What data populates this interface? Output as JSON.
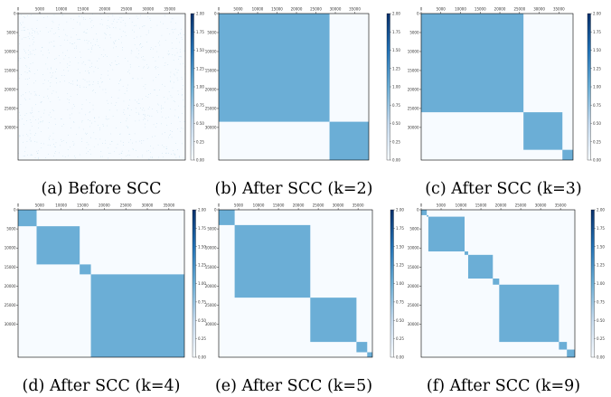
{
  "chart_data": [
    {
      "type": "heatmap",
      "caption": "(a) Before SCC",
      "x_ticks": [
        "0",
        "5000",
        "10000",
        "15000",
        "20000",
        "25000",
        "30000",
        "35000"
      ],
      "y_ticks": [
        "0",
        "5000",
        "10000",
        "15000",
        "20000",
        "25000",
        "30000"
      ],
      "colorbar_ticks": [
        "0.00",
        "0.25",
        "0.50",
        "0.75",
        "1.00",
        "1.25",
        "1.50",
        "1.75",
        "2.00"
      ],
      "colorbar_range": [
        0,
        2
      ],
      "matrix_size": 38600,
      "blocks": [],
      "scattered": true
    },
    {
      "type": "heatmap",
      "caption": "(b) After SCC (k=2)",
      "x_ticks": [
        "0",
        "5000",
        "10000",
        "15000",
        "20000",
        "25000",
        "30000",
        "35000"
      ],
      "y_ticks": [
        "0",
        "5000",
        "10000",
        "15000",
        "20000",
        "25000",
        "30000"
      ],
      "colorbar_ticks": [
        "0.00",
        "0.25",
        "0.50",
        "0.75",
        "1.00",
        "1.25",
        "1.50",
        "1.75",
        "2.00"
      ],
      "colorbar_range": [
        0,
        2
      ],
      "matrix_size": 38600,
      "blocks": [
        [
          0,
          28500
        ],
        [
          28500,
          38600
        ]
      ]
    },
    {
      "type": "heatmap",
      "caption": "(c) After SCC (k=3)",
      "x_ticks": [
        "0",
        "5000",
        "10000",
        "15000",
        "20000",
        "25000",
        "30000",
        "35000"
      ],
      "y_ticks": [
        "0",
        "5000",
        "10000",
        "15000",
        "20000",
        "25000",
        "30000"
      ],
      "colorbar_ticks": [
        "0.00",
        "0.25",
        "0.50",
        "0.75",
        "1.00",
        "1.25",
        "1.50",
        "1.75",
        "2.00"
      ],
      "colorbar_range": [
        0,
        2
      ],
      "matrix_size": 38600,
      "blocks": [
        [
          0,
          26000
        ],
        [
          26000,
          35900
        ],
        [
          35900,
          38600
        ]
      ]
    },
    {
      "type": "heatmap",
      "caption": "(d) After SCC (k=4)",
      "x_ticks": [
        "0",
        "5000",
        "10000",
        "15000",
        "20000",
        "25000",
        "30000",
        "35000"
      ],
      "y_ticks": [
        "0",
        "5000",
        "10000",
        "15000",
        "20000",
        "25000",
        "30000"
      ],
      "colorbar_ticks": [
        "0.00",
        "0.25",
        "0.50",
        "0.75",
        "1.00",
        "1.25",
        "1.50",
        "1.75",
        "2.00"
      ],
      "colorbar_range": [
        0,
        2
      ],
      "matrix_size": 38600,
      "blocks": [
        [
          0,
          4300
        ],
        [
          4300,
          14300
        ],
        [
          14300,
          16900
        ],
        [
          16900,
          38600
        ]
      ]
    },
    {
      "type": "heatmap",
      "caption": "(e) After SCC (k=5)",
      "x_ticks": [
        "0",
        "5000",
        "10000",
        "15000",
        "20000",
        "25000",
        "30000",
        "35000"
      ],
      "y_ticks": [
        "0",
        "5000",
        "10000",
        "15000",
        "20000",
        "25000",
        "30000"
      ],
      "colorbar_ticks": [
        "0.00",
        "0.25",
        "0.50",
        "0.75",
        "1.00",
        "1.25",
        "1.50",
        "1.75",
        "2.00"
      ],
      "colorbar_range": [
        0,
        2
      ],
      "matrix_size": 38600,
      "blocks": [
        [
          0,
          4000
        ],
        [
          4000,
          23000
        ],
        [
          23000,
          34600
        ],
        [
          34600,
          37300
        ],
        [
          37300,
          38600
        ]
      ]
    },
    {
      "type": "heatmap",
      "caption": "(f) After SCC (k=9)",
      "x_ticks": [
        "0",
        "5000",
        "10000",
        "15000",
        "20000",
        "25000",
        "30000",
        "35000"
      ],
      "y_ticks": [
        "0",
        "5000",
        "10000",
        "15000",
        "20000",
        "25000",
        "30000"
      ],
      "colorbar_ticks": [
        "0.00",
        "0.25",
        "0.50",
        "0.75",
        "1.00",
        "1.25",
        "1.50",
        "1.75",
        "2.00"
      ],
      "colorbar_range": [
        0,
        2
      ],
      "matrix_size": 38600,
      "blocks": [
        [
          0,
          1400
        ],
        [
          1400,
          1800
        ],
        [
          1800,
          10900
        ],
        [
          10900,
          11800
        ],
        [
          11800,
          18000
        ],
        [
          18000,
          19600
        ],
        [
          19600,
          34600
        ],
        [
          34600,
          36600
        ],
        [
          36600,
          38600
        ]
      ]
    }
  ],
  "colors": {
    "background": "#f7fbff",
    "block": "#6baed6",
    "colorbar_low": "#f7fbff",
    "colorbar_high": "#08306b"
  }
}
